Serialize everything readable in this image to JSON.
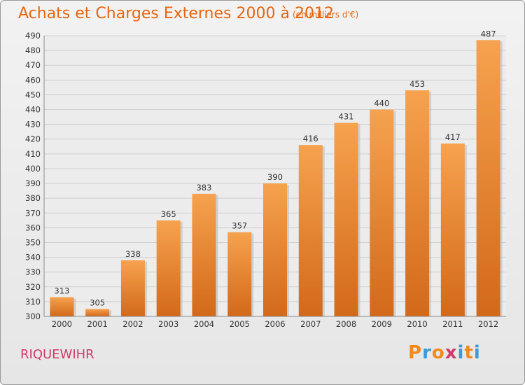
{
  "title": "Achats et Charges Externes 2000 à 2012",
  "subtitle": "(en milliers d'€)",
  "commune": "RIQUEWIHR",
  "logo": {
    "text": "Proxiti",
    "letter_colors": [
      "#f28a1e",
      "#3b9ad9",
      "#f28a1e",
      "#d13a6a",
      "#3b9ad9",
      "#f28a1e",
      "#3b9ad9"
    ]
  },
  "colors": {
    "bar_top": "#f6a24e",
    "bar_bottom": "#d2691a",
    "title": "#e8650c",
    "commune": "#d13a6a",
    "grid": "#cfcfcf"
  },
  "chart_data": {
    "type": "bar",
    "categories": [
      "2000",
      "2001",
      "2002",
      "2003",
      "2004",
      "2005",
      "2006",
      "2007",
      "2008",
      "2009",
      "2010",
      "2011",
      "2012"
    ],
    "values": [
      313,
      305,
      338,
      365,
      383,
      357,
      390,
      416,
      431,
      440,
      453,
      417,
      487
    ],
    "data_labels": [
      "313",
      "305",
      "338",
      "365",
      "383",
      "357",
      "390",
      "416",
      "431",
      "440",
      "453",
      "417",
      "487"
    ],
    "ylim": [
      300,
      490
    ],
    "yticks": [
      300,
      310,
      320,
      330,
      340,
      350,
      360,
      370,
      380,
      390,
      400,
      410,
      420,
      430,
      440,
      450,
      460,
      470,
      480,
      490
    ],
    "grid": true,
    "xlabel": "",
    "ylabel": ""
  }
}
